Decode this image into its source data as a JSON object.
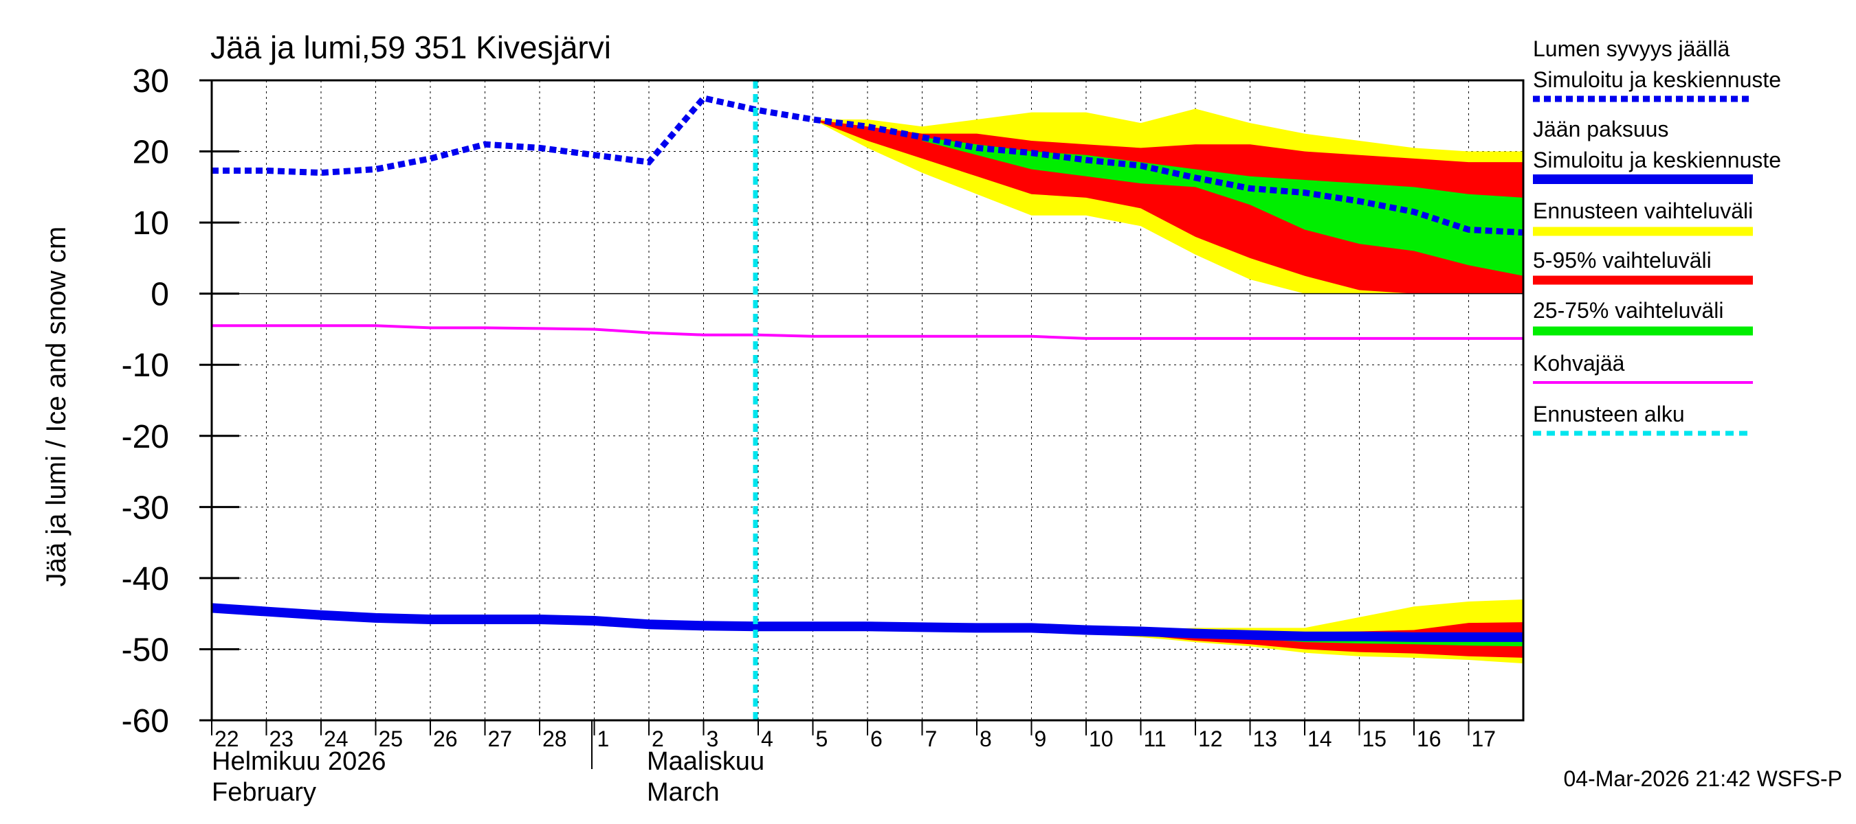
{
  "chart_data": {
    "type": "area",
    "title": "Jää ja lumi,59 351 Kivesjärvi",
    "ylabel": "Jää ja lumi / Ice and snow    cm",
    "ylim": [
      -60,
      30
    ],
    "yticks": [
      "30",
      "20",
      "10",
      "0",
      "-10",
      "-20",
      "-30",
      "-40",
      "-50",
      "-60"
    ],
    "xlim": [
      0,
      24
    ],
    "day_ticks": [
      {
        "x": 0,
        "label": "22"
      },
      {
        "x": 1,
        "label": "23"
      },
      {
        "x": 2,
        "label": "24"
      },
      {
        "x": 3,
        "label": "25"
      },
      {
        "x": 4,
        "label": "26"
      },
      {
        "x": 5,
        "label": "27"
      },
      {
        "x": 6,
        "label": "28"
      },
      {
        "x": 7,
        "label": "1"
      },
      {
        "x": 8,
        "label": "2"
      },
      {
        "x": 9,
        "label": "3"
      },
      {
        "x": 10,
        "label": "4"
      },
      {
        "x": 11,
        "label": "5"
      },
      {
        "x": 12,
        "label": "6"
      },
      {
        "x": 13,
        "label": "7"
      },
      {
        "x": 14,
        "label": "8"
      },
      {
        "x": 15,
        "label": "9"
      },
      {
        "x": 16,
        "label": "10"
      },
      {
        "x": 17,
        "label": "11"
      },
      {
        "x": 18,
        "label": "12"
      },
      {
        "x": 19,
        "label": "13"
      },
      {
        "x": 20,
        "label": "14"
      },
      {
        "x": 21,
        "label": "15"
      },
      {
        "x": 22,
        "label": "16"
      },
      {
        "x": 23,
        "label": "17"
      }
    ],
    "month_labels": {
      "feb_fi": "Helmikuu  2026",
      "feb_en": "February",
      "mar_fi": "Maaliskuu",
      "mar_en": "March"
    },
    "forecast_start_x": 10,
    "timestamp": "04-Mar-2026 21:42 WSFS-P",
    "colors": {
      "snow": "#0000ee",
      "ice": "#0000ee",
      "range": "#ffff00",
      "p5_95": "#ff0000",
      "p25_75": "#00ee00",
      "slush": "#ff00ff",
      "forecast_start": "#00e5ee"
    },
    "legend": {
      "snow_1": "Lumen syvyys jäällä",
      "snow_2": "Simuloitu ja keskiennuste",
      "ice_1": "Jään paksuus",
      "ice_2": "Simuloitu ja keskiennuste",
      "range": "Ennusteen vaihteluväli",
      "p5_95": "5-95% vaihteluväli",
      "p25_75": "25-75% vaihteluväli",
      "slush": "Kohvajää",
      "forecast_start": "Ennusteen alku"
    },
    "series": {
      "snow_depth": {
        "x": [
          0,
          1,
          2,
          3,
          4,
          5,
          6,
          7,
          8,
          9,
          10,
          11,
          12,
          13,
          14,
          15,
          16,
          17,
          18,
          19,
          20,
          21,
          22,
          23,
          24
        ],
        "y": [
          17.3,
          17.3,
          17,
          17.5,
          19,
          21,
          20.5,
          19.5,
          18.5,
          27.5,
          25.8,
          24.5,
          23.5,
          22,
          20.5,
          19.8,
          18.8,
          18,
          16.3,
          14.8,
          14.2,
          13,
          11.5,
          9,
          8.6
        ]
      },
      "snow_range": {
        "x": [
          11,
          12,
          13,
          14,
          15,
          16,
          17,
          18,
          19,
          20,
          21,
          22,
          23,
          24
        ],
        "upper": [
          24.5,
          24.5,
          23.5,
          24.5,
          25.5,
          25.5,
          24,
          26,
          24,
          22.5,
          21.5,
          20.5,
          20,
          20
        ],
        "lower": [
          24.5,
          20.5,
          17,
          14,
          11,
          11,
          9.5,
          5.5,
          2,
          0,
          0,
          0,
          0,
          0
        ]
      },
      "snow_p5_95": {
        "x": [
          11,
          12,
          13,
          14,
          15,
          16,
          17,
          18,
          19,
          20,
          21,
          22,
          23,
          24
        ],
        "upper": [
          24.5,
          23.5,
          22.5,
          22.5,
          21.5,
          21,
          20.5,
          21,
          21,
          20,
          19.5,
          19,
          18.5,
          18.5
        ],
        "lower": [
          24.5,
          21.5,
          19,
          16.5,
          14,
          13.5,
          12,
          8,
          5,
          2.5,
          0.5,
          0,
          0,
          0
        ]
      },
      "snow_p25_75": {
        "x": [
          13,
          14,
          15,
          16,
          17,
          18,
          19,
          20,
          21,
          22,
          23,
          24
        ],
        "upper": [
          22,
          21,
          20,
          19.5,
          18.5,
          17.5,
          16.5,
          16,
          15.5,
          15,
          14,
          13.5
        ],
        "lower": [
          21.5,
          19.5,
          17.5,
          16.5,
          15.5,
          15,
          12.5,
          9,
          7,
          6,
          4,
          2.5
        ]
      },
      "slush": {
        "x": [
          0,
          3,
          4,
          5,
          6,
          7,
          8,
          9,
          10,
          11,
          12,
          13,
          14,
          15,
          16,
          17,
          18,
          19,
          20,
          21,
          22,
          23,
          24
        ],
        "y": [
          -4.5,
          -4.5,
          -4.8,
          -4.8,
          -4.9,
          -5,
          -5.5,
          -5.8,
          -5.8,
          -6,
          -6,
          -6,
          -6,
          -6,
          -6.3,
          -6.3,
          -6.3,
          -6.3,
          -6.3,
          -6.3,
          -6.3,
          -6.3,
          -6.3
        ]
      },
      "ice_thickness": {
        "x": [
          0,
          1,
          2,
          3,
          4,
          5,
          6,
          7,
          8,
          9,
          10,
          11,
          12,
          13,
          14,
          15,
          16,
          17,
          18,
          19,
          20,
          21,
          22,
          23,
          24
        ],
        "y": [
          -44.2,
          -44.7,
          -45.2,
          -45.6,
          -45.8,
          -45.8,
          -45.8,
          -46,
          -46.5,
          -46.7,
          -46.8,
          -46.8,
          -46.8,
          -46.9,
          -47,
          -47,
          -47.3,
          -47.5,
          -47.8,
          -48,
          -48.2,
          -48.2,
          -48.3,
          -48.3,
          -48.3
        ]
      },
      "ice_range": {
        "x": [
          11,
          12,
          13,
          14,
          15,
          16,
          17,
          18,
          19,
          20,
          21,
          22,
          23,
          24
        ],
        "upper": [
          -46.8,
          -46.8,
          -46.9,
          -47,
          -47,
          -47.3,
          -47.3,
          -47,
          -47,
          -47,
          -45.5,
          -44,
          -43.3,
          -43
        ],
        "lower": [
          -46.8,
          -46.8,
          -47.5,
          -47.5,
          -47.6,
          -47.8,
          -48.3,
          -49,
          -49.6,
          -50.5,
          -51,
          -51.2,
          -51.5,
          -52
        ]
      },
      "ice_p5_95": {
        "x": [
          11,
          12,
          13,
          14,
          15,
          16,
          17,
          18,
          19,
          20,
          21,
          22,
          23,
          24
        ],
        "upper": [
          -46.8,
          -46.8,
          -46.9,
          -47,
          -47,
          -47.3,
          -47.4,
          -47.5,
          -47.5,
          -47.6,
          -47.5,
          -47.3,
          -46.3,
          -46.2
        ],
        "lower": [
          -46.8,
          -46.8,
          -47.2,
          -47.3,
          -47.5,
          -47.6,
          -48,
          -48.8,
          -49.3,
          -50,
          -50.4,
          -50.6,
          -51,
          -51.2
        ]
      },
      "ice_p25_75": {
        "x": [
          18,
          19,
          20,
          21,
          22,
          23,
          24
        ],
        "upper": [
          -47.6,
          -47.6,
          -47.8,
          -47.8,
          -47.8,
          -47.8,
          -47.8
        ],
        "lower": [
          -48,
          -48.5,
          -49,
          -49.2,
          -49.3,
          -49.5,
          -49.6
        ]
      }
    }
  }
}
